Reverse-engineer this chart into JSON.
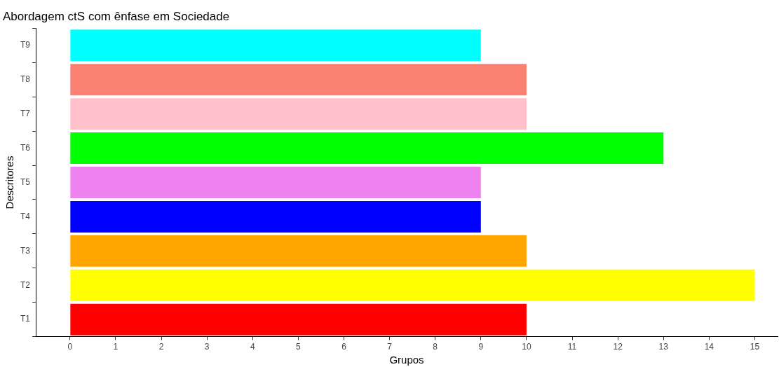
{
  "chart_data": {
    "type": "bar",
    "title": "Abordagem ctS com ênfase em Sociedade",
    "xlabel": "Grupos",
    "ylabel": "Descritores",
    "orientation": "horizontal",
    "categories": [
      "T9",
      "T8",
      "T7",
      "T6",
      "T5",
      "T4",
      "T3",
      "T2",
      "T1"
    ],
    "values": [
      9,
      10,
      10,
      13,
      9,
      9,
      10,
      15,
      10
    ],
    "colors": [
      "#00ffff",
      "#fa8072",
      "#ffc0cb",
      "#00ff00",
      "#ee82ee",
      "#0000ff",
      "#ffa500",
      "#ffff00",
      "#ff0000"
    ],
    "xlim": [
      -0.75,
      15.5
    ],
    "xticks": [
      0,
      1,
      2,
      3,
      4,
      5,
      6,
      7,
      8,
      9,
      10,
      11,
      12,
      13,
      14,
      15
    ],
    "grid": false,
    "legend": false
  }
}
